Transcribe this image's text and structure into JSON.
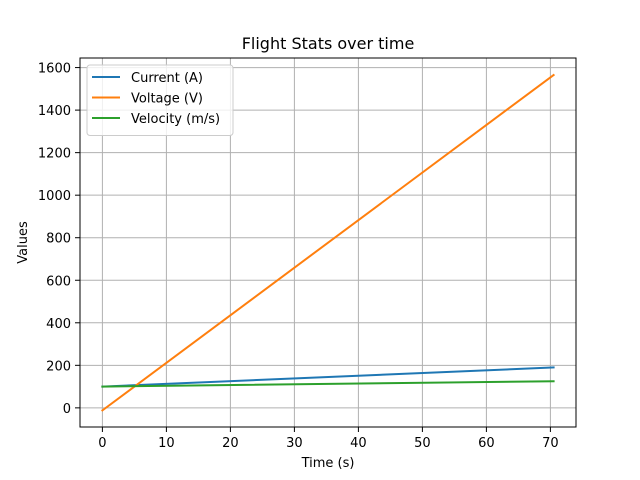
{
  "chart_data": {
    "type": "line",
    "title": "Flight Stats over time",
    "xlabel": "Time (s)",
    "ylabel": "Values",
    "xlim": [
      -3.5,
      74
    ],
    "ylim": [
      -90,
      1645
    ],
    "xticks": [
      0,
      10,
      20,
      30,
      40,
      50,
      60,
      70
    ],
    "yticks": [
      0,
      200,
      400,
      600,
      800,
      1000,
      1200,
      1400,
      1600
    ],
    "grid": true,
    "legend": "top-left",
    "series": [
      {
        "name": "Current (A)",
        "color": "#1f77b4",
        "x": [
          0,
          70.5
        ],
        "y": [
          100,
          190
        ]
      },
      {
        "name": "Voltage (V)",
        "color": "#ff7f0e",
        "x": [
          0,
          70.5
        ],
        "y": [
          -12,
          1565
        ]
      },
      {
        "name": "Velocity (m/s)",
        "color": "#2ca02c",
        "x": [
          0,
          70.5
        ],
        "y": [
          100,
          125
        ]
      }
    ]
  }
}
